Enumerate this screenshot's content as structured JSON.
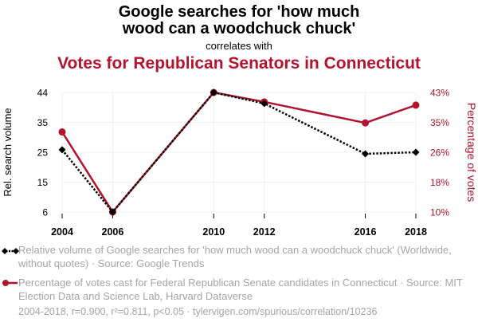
{
  "header": {
    "title_line1": "Google searches for 'how much",
    "title_line2": "wood can a woodchuck chuck'",
    "subtitle": "correlates with",
    "title2": "Votes for Republican Senators in Connecticut"
  },
  "legend": {
    "series1": "Relative volume of Google searches for 'how much wood can a woodchuck chuck' (Worldwide, without quotes) · Source: Google Trends",
    "series2": "Percentage of votes cast for Federal Republican Senate candidates in Connecticut · Source: MIT Election Data and Science Lab, Harvard Dataverse"
  },
  "footer": "2004-2018, r=0.900, r²=0.811, p<0.05 · tylervigen.com/spurious/correlation/10236",
  "colors": {
    "series1": "#000000",
    "series2": "#b2142d",
    "muted": "#a5a5a5"
  },
  "chart_data": {
    "type": "line",
    "categories": [
      "2004",
      "2006",
      "2010",
      "2012",
      "2016",
      "2018"
    ],
    "x": [
      2004,
      2006,
      2010,
      2012,
      2016,
      2018
    ],
    "xlabel": "",
    "ylabel_left": "Rel. search volume",
    "ylabel_right": "Percentage of votes",
    "left_ticks": [
      "6",
      "15",
      "25",
      "35",
      "44"
    ],
    "right_ticks": [
      "10%",
      "18%",
      "26%",
      "35%",
      "43%"
    ],
    "ylim_left": [
      6,
      44
    ],
    "ylim_right": [
      10,
      43
    ],
    "grid": true,
    "series": [
      {
        "name": "Google searches",
        "axis": "left",
        "marker": "diamond",
        "style": "dotted",
        "values": [
          25.8,
          6,
          44,
          40.5,
          24.5,
          25
        ]
      },
      {
        "name": "Republican votes",
        "axis": "right",
        "marker": "circle",
        "style": "solid",
        "values": [
          32.1,
          10,
          43,
          40.4,
          34.6,
          39.5
        ]
      }
    ]
  }
}
